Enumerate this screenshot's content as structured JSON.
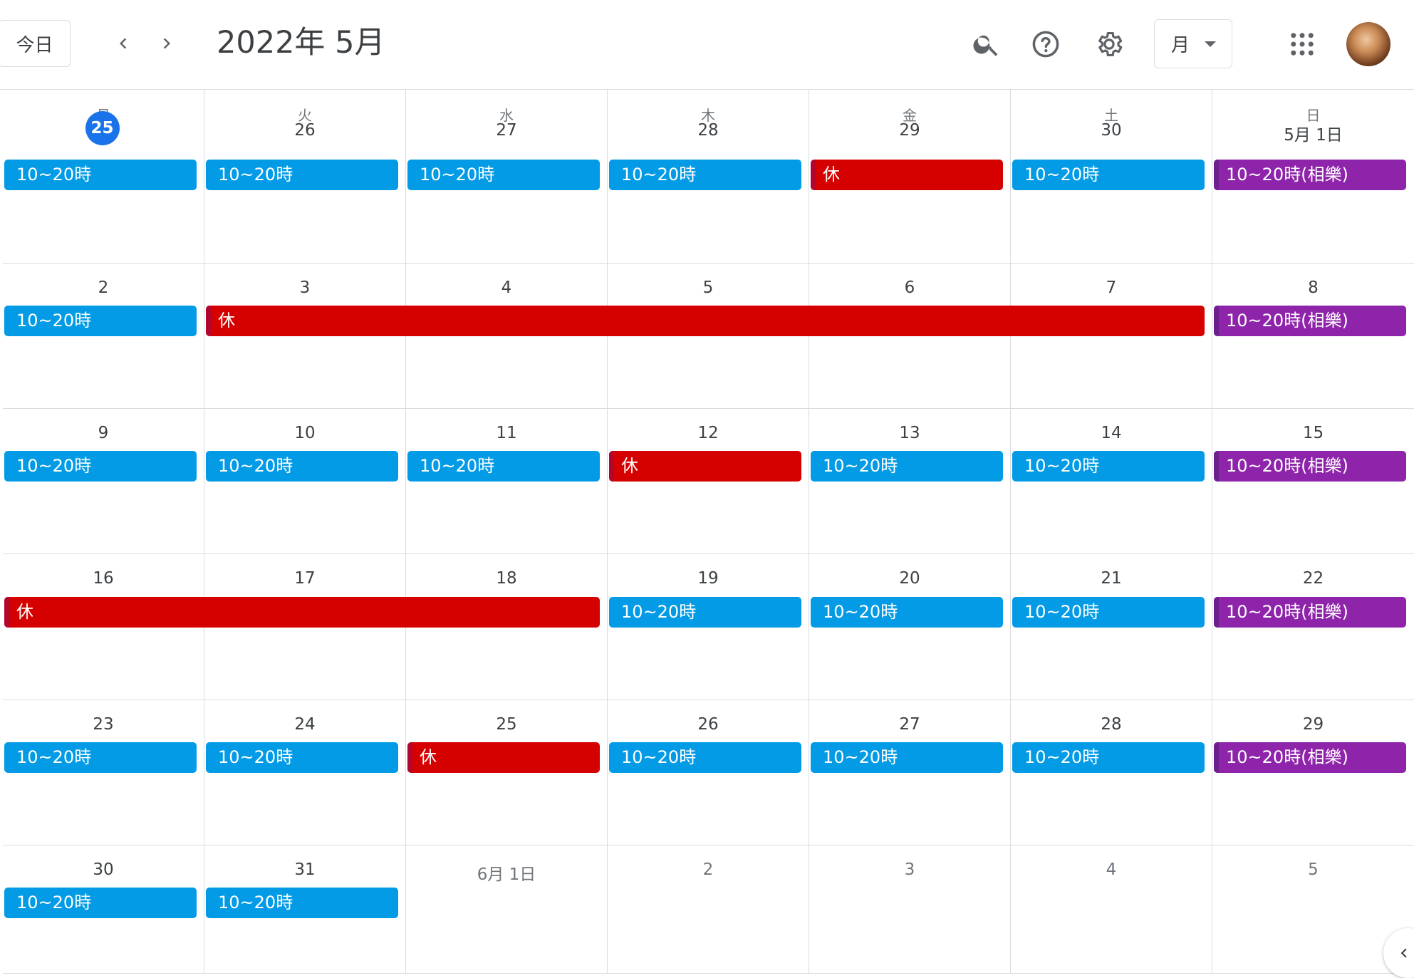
{
  "header": {
    "today_label": "今日",
    "prev_label": "previous",
    "next_label": "next",
    "title": "2022年 5月",
    "view_selected": "月",
    "icons": [
      "chevron-left-icon",
      "chevron-right-icon",
      "search-icon",
      "help-icon",
      "gear-icon",
      "apps-grid-icon",
      "avatar"
    ]
  },
  "colors": {
    "today": "#1a73e8",
    "shift": "#039be5",
    "off": "#d50000",
    "special": "#8e24aa",
    "grid_line": "#dadce0"
  },
  "calendar": {
    "weekdays": [
      "月",
      "火",
      "水",
      "木",
      "金",
      "土",
      "日"
    ],
    "weeks": [
      {
        "days": [
          {
            "label": "25",
            "today": true
          },
          {
            "label": "26"
          },
          {
            "label": "27"
          },
          {
            "label": "28"
          },
          {
            "label": "29"
          },
          {
            "label": "30"
          },
          {
            "label": "5月 1日"
          }
        ]
      },
      {
        "days": [
          {
            "label": "2"
          },
          {
            "label": "3"
          },
          {
            "label": "4"
          },
          {
            "label": "5"
          },
          {
            "label": "6"
          },
          {
            "label": "7"
          },
          {
            "label": "8"
          }
        ]
      },
      {
        "days": [
          {
            "label": "9"
          },
          {
            "label": "10"
          },
          {
            "label": "11"
          },
          {
            "label": "12"
          },
          {
            "label": "13"
          },
          {
            "label": "14"
          },
          {
            "label": "15"
          }
        ]
      },
      {
        "days": [
          {
            "label": "16"
          },
          {
            "label": "17"
          },
          {
            "label": "18"
          },
          {
            "label": "19"
          },
          {
            "label": "20"
          },
          {
            "label": "21"
          },
          {
            "label": "22"
          }
        ]
      },
      {
        "days": [
          {
            "label": "23"
          },
          {
            "label": "24"
          },
          {
            "label": "25"
          },
          {
            "label": "26"
          },
          {
            "label": "27"
          },
          {
            "label": "28"
          },
          {
            "label": "29"
          }
        ]
      },
      {
        "days": [
          {
            "label": "30"
          },
          {
            "label": "31"
          },
          {
            "label": "6月 1日",
            "other_month": true
          },
          {
            "label": "2",
            "other_month": true
          },
          {
            "label": "3",
            "other_month": true
          },
          {
            "label": "4",
            "other_month": true
          },
          {
            "label": "5",
            "other_month": true
          }
        ]
      }
    ],
    "events": [
      {
        "week": 0,
        "start": 0,
        "span": 1,
        "title": "10~20時",
        "color": "blue"
      },
      {
        "week": 0,
        "start": 1,
        "span": 1,
        "title": "10~20時",
        "color": "blue"
      },
      {
        "week": 0,
        "start": 2,
        "span": 1,
        "title": "10~20時",
        "color": "blue"
      },
      {
        "week": 0,
        "start": 3,
        "span": 1,
        "title": "10~20時",
        "color": "blue"
      },
      {
        "week": 0,
        "start": 4,
        "span": 1,
        "title": "休",
        "color": "red"
      },
      {
        "week": 0,
        "start": 5,
        "span": 1,
        "title": "10~20時",
        "color": "blue"
      },
      {
        "week": 0,
        "start": 6,
        "span": 1,
        "title": "10~20時(相樂)",
        "color": "purple"
      },
      {
        "week": 1,
        "start": 0,
        "span": 1,
        "title": "10~20時",
        "color": "blue"
      },
      {
        "week": 1,
        "start": 1,
        "span": 5,
        "title": "休",
        "color": "red"
      },
      {
        "week": 1,
        "start": 6,
        "span": 1,
        "title": "10~20時(相樂)",
        "color": "purple"
      },
      {
        "week": 2,
        "start": 0,
        "span": 1,
        "title": "10~20時",
        "color": "blue"
      },
      {
        "week": 2,
        "start": 1,
        "span": 1,
        "title": "10~20時",
        "color": "blue"
      },
      {
        "week": 2,
        "start": 2,
        "span": 1,
        "title": "10~20時",
        "color": "blue"
      },
      {
        "week": 2,
        "start": 3,
        "span": 1,
        "title": "休",
        "color": "red"
      },
      {
        "week": 2,
        "start": 4,
        "span": 1,
        "title": "10~20時",
        "color": "blue"
      },
      {
        "week": 2,
        "start": 5,
        "span": 1,
        "title": "10~20時",
        "color": "blue"
      },
      {
        "week": 2,
        "start": 6,
        "span": 1,
        "title": "10~20時(相樂)",
        "color": "purple"
      },
      {
        "week": 3,
        "start": 0,
        "span": 3,
        "title": "休",
        "color": "red"
      },
      {
        "week": 3,
        "start": 3,
        "span": 1,
        "title": "10~20時",
        "color": "blue"
      },
      {
        "week": 3,
        "start": 4,
        "span": 1,
        "title": "10~20時",
        "color": "blue"
      },
      {
        "week": 3,
        "start": 5,
        "span": 1,
        "title": "10~20時",
        "color": "blue"
      },
      {
        "week": 3,
        "start": 6,
        "span": 1,
        "title": "10~20時(相樂)",
        "color": "purple"
      },
      {
        "week": 4,
        "start": 0,
        "span": 1,
        "title": "10~20時",
        "color": "blue"
      },
      {
        "week": 4,
        "start": 1,
        "span": 1,
        "title": "10~20時",
        "color": "blue"
      },
      {
        "week": 4,
        "start": 2,
        "span": 1,
        "title": "休",
        "color": "red"
      },
      {
        "week": 4,
        "start": 3,
        "span": 1,
        "title": "10~20時",
        "color": "blue"
      },
      {
        "week": 4,
        "start": 4,
        "span": 1,
        "title": "10~20時",
        "color": "blue"
      },
      {
        "week": 4,
        "start": 5,
        "span": 1,
        "title": "10~20時",
        "color": "blue"
      },
      {
        "week": 4,
        "start": 6,
        "span": 1,
        "title": "10~20時(相樂)",
        "color": "purple"
      },
      {
        "week": 5,
        "start": 0,
        "span": 1,
        "title": "10~20時",
        "color": "blue"
      },
      {
        "week": 5,
        "start": 1,
        "span": 1,
        "title": "10~20時",
        "color": "blue"
      }
    ]
  }
}
